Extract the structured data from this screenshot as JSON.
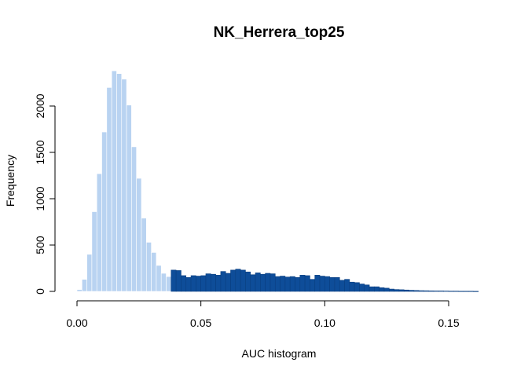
{
  "chart_data": {
    "type": "bar",
    "title": "NK_Herrera_top25",
    "xlabel": "AUC histogram",
    "ylabel": "Frequency",
    "xlim": [
      0.0,
      0.165
    ],
    "ylim": [
      0,
      2400
    ],
    "x_ticks": [
      {
        "value": 0.0,
        "label": "0.00"
      },
      {
        "value": 0.05,
        "label": "0.05"
      },
      {
        "value": 0.1,
        "label": "0.10"
      },
      {
        "value": 0.15,
        "label": "0.15"
      }
    ],
    "y_ticks": [
      {
        "value": 0,
        "label": "0"
      },
      {
        "value": 500,
        "label": "500"
      },
      {
        "value": 1000,
        "label": "1000"
      },
      {
        "value": 1500,
        "label": "1500"
      },
      {
        "value": 2000,
        "label": "2000"
      }
    ],
    "bin_start": 0.0,
    "bin_width": 0.002,
    "threshold": 0.038,
    "colors": {
      "below_threshold": "#b9d3f1",
      "above_threshold": "#0e4d99",
      "bar_border_below": "#ffffff",
      "bar_border_above": "#0a3f80"
    },
    "values": [
      20,
      130,
      400,
      860,
      1270,
      1720,
      2200,
      2380,
      2350,
      2290,
      2010,
      1560,
      1220,
      790,
      530,
      420,
      280,
      195,
      160,
      230,
      225,
      170,
      150,
      170,
      165,
      170,
      190,
      185,
      175,
      215,
      195,
      230,
      240,
      230,
      210,
      180,
      200,
      185,
      195,
      190,
      160,
      165,
      155,
      160,
      150,
      175,
      170,
      130,
      175,
      165,
      160,
      150,
      150,
      120,
      130,
      100,
      95,
      80,
      70,
      50,
      50,
      40,
      35,
      25,
      20,
      18,
      15,
      12,
      10,
      8,
      7,
      6,
      5,
      5,
      4,
      3,
      3,
      2,
      2,
      2,
      1
    ]
  }
}
